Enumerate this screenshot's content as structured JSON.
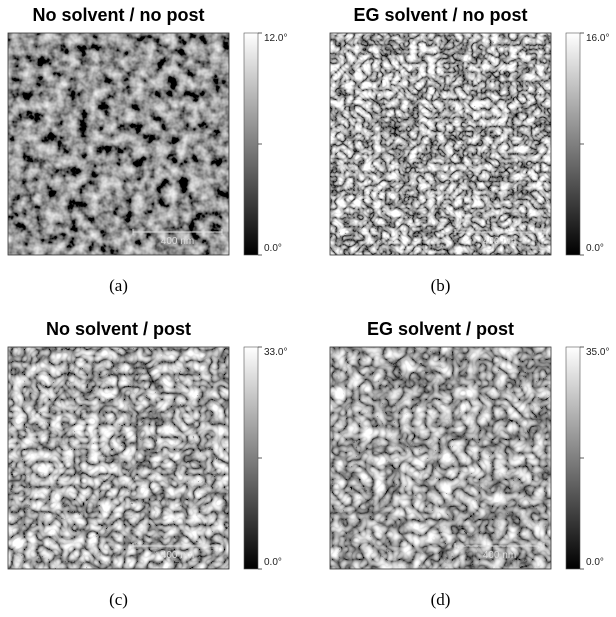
{
  "panels": [
    {
      "title": "No solvent / no post",
      "scale_max": "12.0°",
      "scale_min": "0.0°",
      "scale_bar": "400 nm",
      "caption": "(a)"
    },
    {
      "title": "EG solvent / no post",
      "scale_max": "16.0°",
      "scale_min": "0.0°",
      "scale_bar": "400 nm",
      "caption": "(b)"
    },
    {
      "title": "No solvent / post",
      "scale_max": "33.0°",
      "scale_min": "0.0°",
      "scale_bar": "400 nm",
      "caption": "(c)"
    },
    {
      "title": "EG solvent / post",
      "scale_max": "35.0°",
      "scale_min": "0.0°",
      "scale_bar": "400 nm",
      "caption": "(d)"
    }
  ]
}
